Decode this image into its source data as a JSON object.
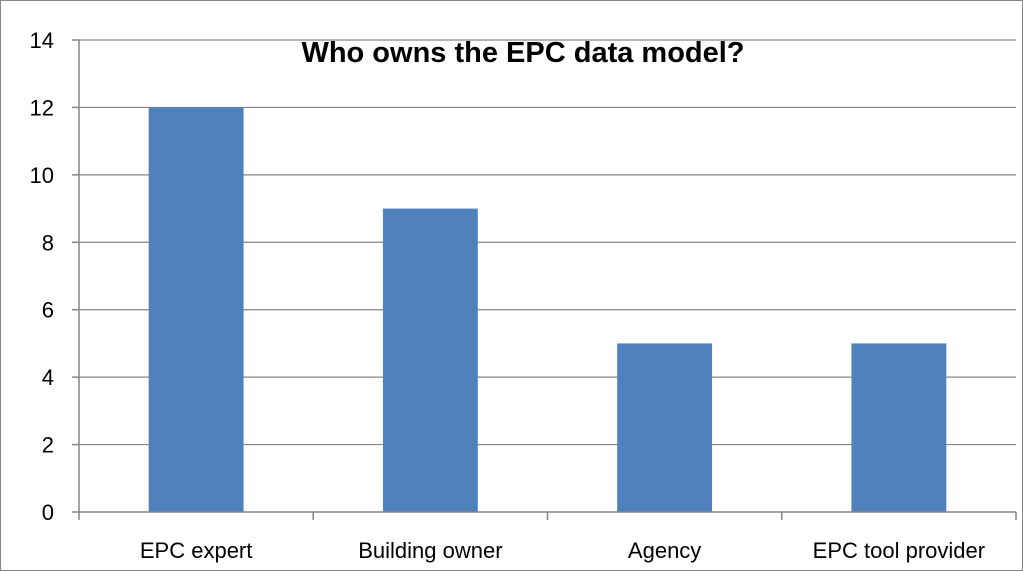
{
  "chart_data": {
    "type": "bar",
    "title": "Who owns the EPC data model?",
    "categories": [
      "EPC expert",
      "Building owner",
      "Agency",
      "EPC tool provider"
    ],
    "values": [
      12,
      9,
      5,
      5
    ],
    "ylim": [
      0,
      14
    ],
    "yticks": [
      0,
      2,
      4,
      6,
      8,
      10,
      12,
      14
    ],
    "grid": true,
    "legend": "none",
    "bar_color": "#4F81BD",
    "xlabel": "",
    "ylabel": ""
  }
}
